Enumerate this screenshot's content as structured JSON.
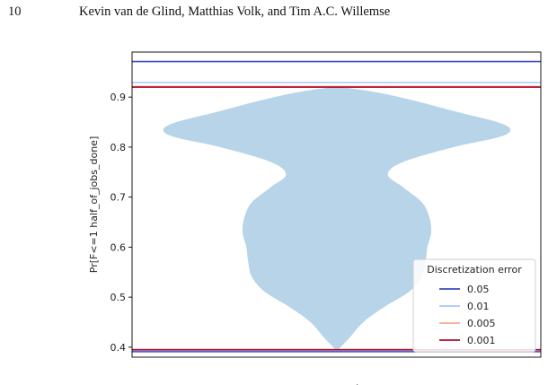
{
  "page": {
    "page_number": "10",
    "authors": "Kevin van de Glind, Matthias Volk, and Tim A.C. Willemse"
  },
  "chart_data": {
    "type": "violin",
    "ylabel": "Pr[F<=1 half_of_jobs_done]",
    "ylim": [
      0.38,
      0.99
    ],
    "yticks": [
      "0.4",
      "0.5",
      "0.6",
      "0.7",
      "0.8",
      "0.9"
    ],
    "grid": false,
    "violin": {
      "color": "#b8d4e8",
      "min": 0.39,
      "max": 0.921,
      "profile": [
        [
          0.39,
          0.0
        ],
        [
          0.4,
          0.02
        ],
        [
          0.42,
          0.07
        ],
        [
          0.45,
          0.14
        ],
        [
          0.48,
          0.25
        ],
        [
          0.51,
          0.38
        ],
        [
          0.54,
          0.45
        ],
        [
          0.57,
          0.47
        ],
        [
          0.6,
          0.48
        ],
        [
          0.63,
          0.5
        ],
        [
          0.66,
          0.49
        ],
        [
          0.69,
          0.45
        ],
        [
          0.72,
          0.35
        ],
        [
          0.745,
          0.27
        ],
        [
          0.77,
          0.35
        ],
        [
          0.8,
          0.62
        ],
        [
          0.82,
          0.86
        ],
        [
          0.835,
          0.92
        ],
        [
          0.85,
          0.85
        ],
        [
          0.87,
          0.64
        ],
        [
          0.89,
          0.44
        ],
        [
          0.905,
          0.27
        ],
        [
          0.915,
          0.12
        ],
        [
          0.921,
          0.0
        ]
      ]
    },
    "lines": [
      {
        "label": "0.05",
        "color": "#3a4cc0",
        "top": 0.971,
        "bottom": 0.391
      },
      {
        "label": "0.01",
        "color": "#aac7fd",
        "top": 0.929,
        "bottom": 0.394
      },
      {
        "label": "0.005",
        "color": "#f7a889",
        "top": 0.921,
        "bottom": 0.395
      },
      {
        "label": "0.001",
        "color": "#b40426",
        "top": 0.92,
        "bottom": 0.395
      }
    ],
    "legend": {
      "title": "Discretization error",
      "placement": "lower-right"
    },
    "xlabel_partial": "t"
  }
}
